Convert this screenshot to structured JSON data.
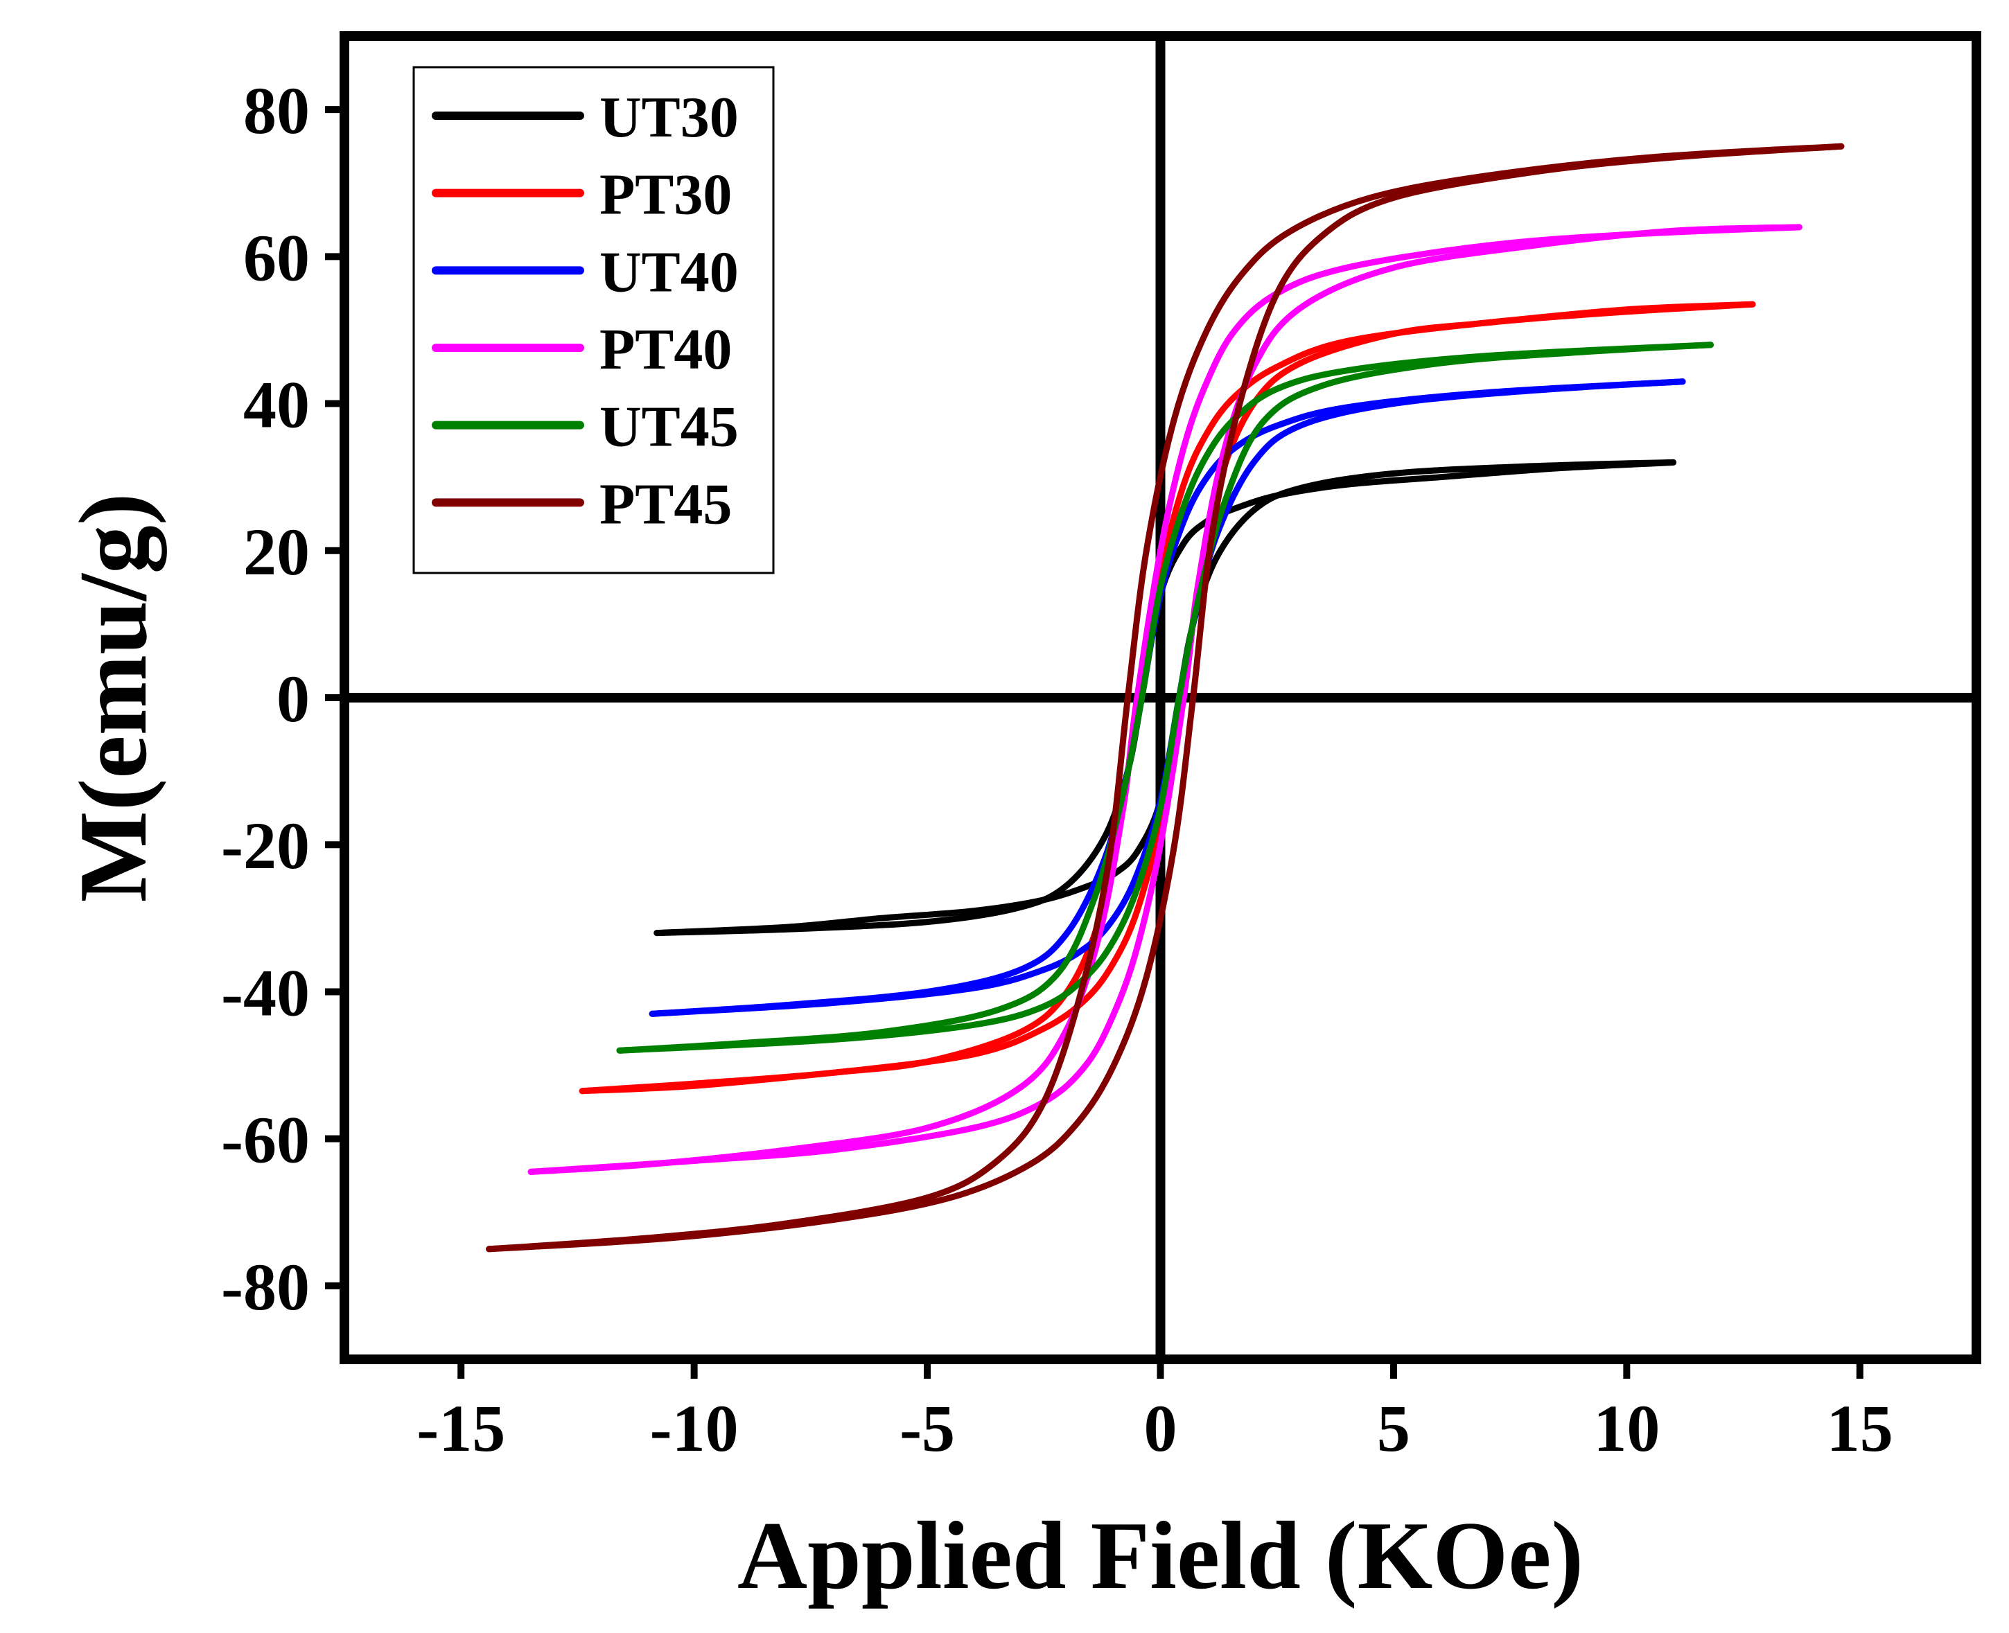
{
  "chart_data": {
    "type": "line",
    "title": "",
    "xlabel": "Applied Field (KOe)",
    "ylabel": "M(emu/g)",
    "xlim": [
      -17.5,
      17.5
    ],
    "ylim": [
      -90,
      90
    ],
    "x_ticks": [
      -15,
      -10,
      -5,
      0,
      5,
      10,
      15
    ],
    "y_ticks": [
      80,
      60,
      40,
      20,
      0,
      -20,
      -40,
      -60,
      -80
    ],
    "x_tick_labels": [
      "-15",
      "-10",
      "-5",
      "0",
      "5",
      "10",
      "15"
    ],
    "y_tick_labels": [
      "80",
      "60",
      "40",
      "20",
      "0",
      "-20",
      "-40",
      "-60",
      "-80"
    ],
    "grid": false,
    "zero_lines": true,
    "legend_position": "top-left",
    "series": [
      {
        "name": "UT30",
        "color": "#000000",
        "upper": [
          [
            -10.8,
            -32
          ],
          [
            -8,
            -31.5
          ],
          [
            -5,
            -30.5
          ],
          [
            -3,
            -28.5
          ],
          [
            -2,
            -25.5
          ],
          [
            -1.2,
            -19
          ],
          [
            -0.7,
            -10
          ],
          [
            -0.4,
            0
          ],
          [
            0,
            14
          ],
          [
            0.5,
            21
          ],
          [
            1,
            24
          ],
          [
            1.5,
            25.5
          ],
          [
            2.5,
            27.5
          ],
          [
            4,
            29
          ],
          [
            6,
            30
          ],
          [
            8.5,
            31.2
          ],
          [
            11,
            32
          ]
        ],
        "lower": [
          [
            -10.8,
            -32
          ],
          [
            -8,
            -31.2
          ],
          [
            -6,
            -30
          ],
          [
            -4,
            -29
          ],
          [
            -2.5,
            -27.5
          ],
          [
            -1.5,
            -25.5
          ],
          [
            -1,
            -24
          ],
          [
            -0.5,
            -21
          ],
          [
            0,
            -14
          ],
          [
            0.4,
            0
          ],
          [
            0.7,
            10
          ],
          [
            1.2,
            19
          ],
          [
            2,
            25.5
          ],
          [
            3,
            28.5
          ],
          [
            5,
            30.5
          ],
          [
            8,
            31.5
          ],
          [
            11,
            32
          ]
        ]
      },
      {
        "name": "PT30",
        "color": "#ff0000",
        "upper": [
          [
            -12.4,
            -53.5
          ],
          [
            -10,
            -52.8
          ],
          [
            -7,
            -51
          ],
          [
            -5,
            -49.5
          ],
          [
            -3,
            -45.5
          ],
          [
            -2,
            -40
          ],
          [
            -1.3,
            -30
          ],
          [
            -0.8,
            -15
          ],
          [
            -0.5,
            0
          ],
          [
            0,
            17
          ],
          [
            0.5,
            29
          ],
          [
            1,
            36
          ],
          [
            1.6,
            41
          ],
          [
            2.5,
            45
          ],
          [
            4,
            48.5
          ],
          [
            7,
            51
          ],
          [
            10,
            52.5
          ],
          [
            12.7,
            53.5
          ]
        ],
        "lower": [
          [
            -12.4,
            -53.5
          ],
          [
            -10,
            -52.5
          ],
          [
            -7,
            -51
          ],
          [
            -4,
            -48.5
          ],
          [
            -2.5,
            -45
          ],
          [
            -1.6,
            -41
          ],
          [
            -1,
            -36
          ],
          [
            -0.5,
            -29
          ],
          [
            0,
            -17
          ],
          [
            0.5,
            0
          ],
          [
            0.8,
            15
          ],
          [
            1.3,
            30
          ],
          [
            2,
            40
          ],
          [
            3,
            45.5
          ],
          [
            5,
            49.5
          ],
          [
            7,
            51
          ],
          [
            10,
            52.8
          ],
          [
            12.7,
            53.5
          ]
        ]
      },
      {
        "name": "UT40",
        "color": "#0000ff",
        "upper": [
          [
            -10.9,
            -43
          ],
          [
            -8,
            -41.8
          ],
          [
            -5,
            -40
          ],
          [
            -3,
            -37
          ],
          [
            -2,
            -32
          ],
          [
            -1.2,
            -22
          ],
          [
            -0.7,
            -10
          ],
          [
            -0.4,
            0
          ],
          [
            0,
            14
          ],
          [
            0.5,
            24
          ],
          [
            1,
            30
          ],
          [
            1.6,
            34
          ],
          [
            2.5,
            37
          ],
          [
            4,
            39.5
          ],
          [
            7,
            41.5
          ],
          [
            11.2,
            43
          ]
        ],
        "lower": [
          [
            -10.9,
            -43
          ],
          [
            -7,
            -41.5
          ],
          [
            -4,
            -39.5
          ],
          [
            -2.5,
            -37
          ],
          [
            -1.6,
            -34
          ],
          [
            -1,
            -30
          ],
          [
            -0.5,
            -24
          ],
          [
            0,
            -14
          ],
          [
            0.4,
            0
          ],
          [
            0.7,
            10
          ],
          [
            1.2,
            22
          ],
          [
            2,
            32
          ],
          [
            3,
            37
          ],
          [
            5,
            40
          ],
          [
            8,
            41.8
          ],
          [
            11.2,
            43
          ]
        ]
      },
      {
        "name": "PT40",
        "color": "#ff00ff",
        "upper": [
          [
            -13.5,
            -64.5
          ],
          [
            -11,
            -63.5
          ],
          [
            -8,
            -61.5
          ],
          [
            -5,
            -58.5
          ],
          [
            -3,
            -53
          ],
          [
            -2,
            -45
          ],
          [
            -1.3,
            -32
          ],
          [
            -0.8,
            -15
          ],
          [
            -0.5,
            0
          ],
          [
            0,
            20
          ],
          [
            0.5,
            34
          ],
          [
            1,
            43
          ],
          [
            1.6,
            50
          ],
          [
            2.5,
            55
          ],
          [
            4,
            58.5
          ],
          [
            7,
            61.5
          ],
          [
            10,
            63
          ],
          [
            13.7,
            64
          ]
        ],
        "lower": [
          [
            -13.5,
            -64.5
          ],
          [
            -10,
            -63
          ],
          [
            -7,
            -61.5
          ],
          [
            -4,
            -58.5
          ],
          [
            -2.5,
            -55
          ],
          [
            -1.6,
            -50
          ],
          [
            -1,
            -43
          ],
          [
            -0.5,
            -34
          ],
          [
            0,
            -20
          ],
          [
            0.5,
            0
          ],
          [
            0.8,
            15
          ],
          [
            1.3,
            32
          ],
          [
            2,
            45
          ],
          [
            3,
            53
          ],
          [
            5,
            58.5
          ],
          [
            8,
            61.5
          ],
          [
            11,
            63.5
          ],
          [
            13.7,
            64
          ]
        ]
      },
      {
        "name": "UT45",
        "color": "#008000",
        "upper": [
          [
            -11.6,
            -48
          ],
          [
            -9,
            -47
          ],
          [
            -6,
            -45.5
          ],
          [
            -3.5,
            -42.5
          ],
          [
            -2.2,
            -37.5
          ],
          [
            -1.4,
            -27
          ],
          [
            -0.8,
            -13
          ],
          [
            -0.4,
            0
          ],
          [
            0,
            15
          ],
          [
            0.5,
            26
          ],
          [
            1,
            33
          ],
          [
            1.6,
            38
          ],
          [
            2.5,
            42
          ],
          [
            4,
            44.5
          ],
          [
            7,
            46.5
          ],
          [
            11.8,
            48
          ]
        ],
        "lower": [
          [
            -11.6,
            -48
          ],
          [
            -7,
            -46.5
          ],
          [
            -4,
            -44.5
          ],
          [
            -2.5,
            -42
          ],
          [
            -1.6,
            -38
          ],
          [
            -1,
            -33
          ],
          [
            -0.5,
            -26
          ],
          [
            0,
            -15
          ],
          [
            0.4,
            0
          ],
          [
            0.8,
            13
          ],
          [
            1.4,
            27
          ],
          [
            2.2,
            37.5
          ],
          [
            3.5,
            42.5
          ],
          [
            6,
            45.5
          ],
          [
            9,
            47
          ],
          [
            11.8,
            48
          ]
        ]
      },
      {
        "name": "PT45",
        "color": "#800000",
        "upper": [
          [
            -14.4,
            -75
          ],
          [
            -11,
            -73.5
          ],
          [
            -8,
            -71.5
          ],
          [
            -5,
            -68
          ],
          [
            -3.5,
            -63
          ],
          [
            -2.5,
            -55
          ],
          [
            -1.7,
            -40
          ],
          [
            -1.1,
            -22
          ],
          [
            -0.7,
            0
          ],
          [
            -0.3,
            20
          ],
          [
            0.3,
            38
          ],
          [
            1,
            50
          ],
          [
            1.8,
            58
          ],
          [
            2.8,
            63.5
          ],
          [
            4.5,
            68
          ],
          [
            7,
            71
          ],
          [
            10.5,
            73.5
          ],
          [
            14.6,
            75
          ]
        ],
        "lower": [
          [
            -14.4,
            -75
          ],
          [
            -10.5,
            -73.5
          ],
          [
            -7,
            -71
          ],
          [
            -4.5,
            -68
          ],
          [
            -2.8,
            -63.5
          ],
          [
            -1.8,
            -58
          ],
          [
            -1,
            -50
          ],
          [
            -0.3,
            -38
          ],
          [
            0.3,
            -20
          ],
          [
            0.7,
            0
          ],
          [
            1.1,
            22
          ],
          [
            1.7,
            40
          ],
          [
            2.5,
            55
          ],
          [
            3.5,
            63
          ],
          [
            5,
            68
          ],
          [
            8,
            71.5
          ],
          [
            11,
            73.5
          ],
          [
            14.6,
            75
          ]
        ]
      }
    ]
  }
}
